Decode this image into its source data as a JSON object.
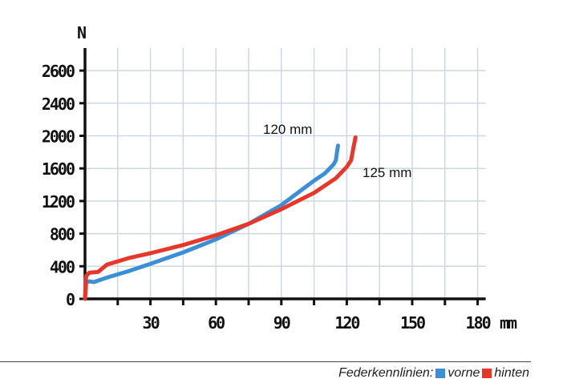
{
  "chart_data": {
    "type": "line",
    "title": "",
    "xlabel": "mm",
    "ylabel": "N",
    "xlim": [
      0,
      180
    ],
    "x_ticks": [
      30,
      60,
      90,
      120,
      150,
      180
    ],
    "x_tick_labels": [
      "30",
      "60",
      "90",
      "120",
      "150",
      "180"
    ],
    "y_ticks": [
      0,
      400,
      800,
      1200,
      1600,
      2000,
      2400,
      2600
    ],
    "y_tick_labels": [
      "0",
      "400",
      "800",
      "1200",
      "1600",
      "2000",
      "2400",
      "2600"
    ],
    "grid": true,
    "series": [
      {
        "name": "vorne",
        "color": "#3a8fd6",
        "annotation": "120  mm",
        "x": [
          0,
          0.5,
          2,
          4,
          10,
          20,
          30,
          45,
          60,
          75,
          90,
          100,
          105,
          110,
          114,
          115,
          115.5,
          116
        ],
        "y": [
          0,
          200,
          215,
          205,
          260,
          340,
          430,
          570,
          730,
          920,
          1150,
          1350,
          1450,
          1540,
          1650,
          1700,
          1800,
          1880
        ]
      },
      {
        "name": "hinten",
        "color": "#e8372a",
        "annotation": "125  mm",
        "x": [
          0,
          0.5,
          2,
          6,
          10,
          20,
          30,
          45,
          60,
          75,
          90,
          105,
          115,
          120,
          122,
          123,
          124
        ],
        "y": [
          0,
          280,
          320,
          330,
          420,
          500,
          560,
          660,
          780,
          920,
          1100,
          1300,
          1480,
          1620,
          1700,
          1850,
          1980
        ]
      }
    ],
    "legend": {
      "title": "Federkennlinien:",
      "placement": "bottom-right"
    }
  }
}
